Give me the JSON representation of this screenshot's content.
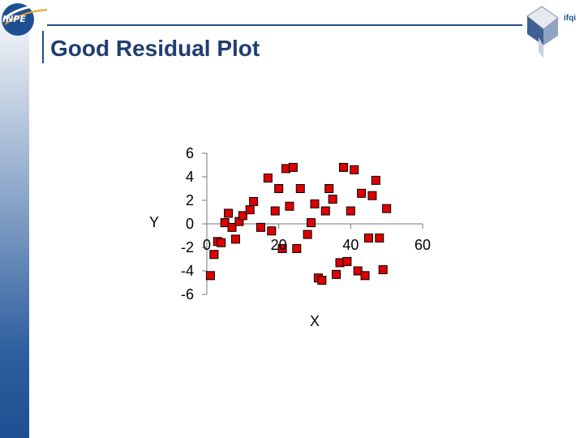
{
  "slide": {
    "title": "Good Residual Plot",
    "logo_text": "INPE",
    "corner_text": "ifqi",
    "accent_color": "#1f4f92"
  },
  "chart_data": {
    "type": "scatter",
    "title": "Good Residual Plot",
    "xlabel": "X",
    "ylabel": "Y",
    "xlim": [
      0,
      60
    ],
    "ylim": [
      -6,
      6
    ],
    "x_ticks": [
      0,
      20,
      40,
      60
    ],
    "y_ticks": [
      6,
      4,
      2,
      0,
      -2,
      -4,
      -6
    ],
    "grid": false,
    "marker_color": "#dd0000",
    "series": [
      {
        "points": [
          [
            1,
            -4.4
          ],
          [
            2,
            -2.6
          ],
          [
            3,
            -1.5
          ],
          [
            4,
            -1.6
          ],
          [
            5,
            0.1
          ],
          [
            6,
            0.9
          ],
          [
            7,
            -0.3
          ],
          [
            8,
            -1.3
          ],
          [
            9,
            0.2
          ],
          [
            10,
            0.7
          ],
          [
            12,
            1.2
          ],
          [
            13,
            1.9
          ],
          [
            15,
            -0.3
          ],
          [
            17,
            3.9
          ],
          [
            18,
            -0.6
          ],
          [
            19,
            1.1
          ],
          [
            20,
            3.0
          ],
          [
            21,
            -2.1
          ],
          [
            22,
            4.7
          ],
          [
            23,
            1.5
          ],
          [
            24,
            4.8
          ],
          [
            25,
            -2.1
          ],
          [
            26,
            3.0
          ],
          [
            28,
            -0.9
          ],
          [
            29,
            0.1
          ],
          [
            30,
            1.7
          ],
          [
            31,
            -4.6
          ],
          [
            32,
            -4.8
          ],
          [
            33,
            1.1
          ],
          [
            34,
            3.0
          ],
          [
            35,
            2.1
          ],
          [
            36,
            -4.3
          ],
          [
            37,
            -3.3
          ],
          [
            38,
            4.8
          ],
          [
            39,
            -3.2
          ],
          [
            40,
            1.1
          ],
          [
            41,
            4.6
          ],
          [
            42,
            -4.0
          ],
          [
            43,
            2.6
          ],
          [
            44,
            -4.4
          ],
          [
            45,
            -1.2
          ],
          [
            46,
            2.4
          ],
          [
            47,
            3.7
          ],
          [
            48,
            -1.2
          ],
          [
            49,
            -3.9
          ],
          [
            50,
            1.3
          ]
        ]
      }
    ]
  }
}
